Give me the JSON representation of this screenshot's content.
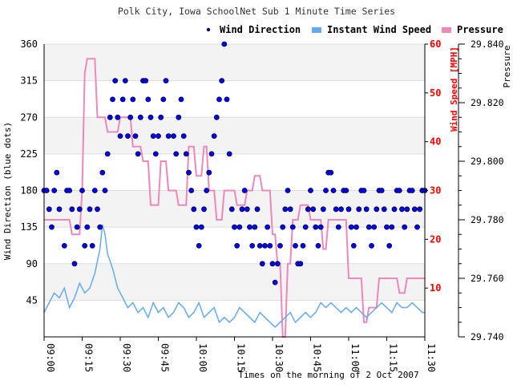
{
  "chart_data": {
    "type": "scatter",
    "title": "Polk City, Iowa SchoolNet Sub 1 Minute Time Series",
    "xlabel": "Times on the morning of 2 Oct 2007",
    "x_ticks": [
      "09:00",
      "09:15",
      "09:30",
      "09:45",
      "10:00",
      "10:15",
      "10:30",
      "10:45",
      "11:00",
      "11:15",
      "11:30"
    ],
    "x_range_minutes": [
      0,
      150
    ],
    "y_left": {
      "label": "Wind Direction (blue dots)",
      "range": [
        0,
        360
      ],
      "ticks": [
        45,
        90,
        135,
        180,
        225,
        270,
        315,
        360
      ]
    },
    "y_right1": {
      "label": "Wind Speed [MPH]",
      "range": [
        0,
        60
      ],
      "ticks": [
        10,
        20,
        30,
        40,
        50,
        60
      ],
      "color": "#ff0000"
    },
    "y_right2": {
      "label": "Pressure",
      "range": [
        29.74,
        29.84
      ],
      "ticks": [
        "29.740",
        "29.760",
        "29.780",
        "29.800",
        "29.820",
        "29.840"
      ]
    },
    "legend_position": "top-right",
    "series": [
      {
        "name": "Wind Direction",
        "type": "scatter",
        "axis": "left",
        "color": "#0000ff",
        "points": [
          [
            0,
            180
          ],
          [
            1,
            180
          ],
          [
            2,
            157
          ],
          [
            3,
            135
          ],
          [
            4,
            180
          ],
          [
            5,
            202
          ],
          [
            6,
            157
          ],
          [
            8,
            112
          ],
          [
            9,
            180
          ],
          [
            10,
            180
          ],
          [
            11,
            157
          ],
          [
            12,
            90
          ],
          [
            13,
            135
          ],
          [
            14,
            157
          ],
          [
            15,
            180
          ],
          [
            16,
            112
          ],
          [
            17,
            135
          ],
          [
            18,
            157
          ],
          [
            19,
            112
          ],
          [
            20,
            180
          ],
          [
            21,
            157
          ],
          [
            22,
            135
          ],
          [
            23,
            202
          ],
          [
            24,
            180
          ],
          [
            25,
            225
          ],
          [
            26,
            270
          ],
          [
            27,
            292
          ],
          [
            28,
            315
          ],
          [
            29,
            270
          ],
          [
            30,
            247
          ],
          [
            31,
            292
          ],
          [
            32,
            315
          ],
          [
            33,
            247
          ],
          [
            34,
            270
          ],
          [
            35,
            292
          ],
          [
            36,
            247
          ],
          [
            37,
            225
          ],
          [
            38,
            270
          ],
          [
            39,
            315
          ],
          [
            40,
            315
          ],
          [
            41,
            292
          ],
          [
            42,
            270
          ],
          [
            43,
            247
          ],
          [
            44,
            225
          ],
          [
            45,
            247
          ],
          [
            46,
            270
          ],
          [
            47,
            292
          ],
          [
            48,
            315
          ],
          [
            49,
            247
          ],
          [
            51,
            247
          ],
          [
            52,
            225
          ],
          [
            53,
            270
          ],
          [
            54,
            292
          ],
          [
            55,
            247
          ],
          [
            56,
            225
          ],
          [
            57,
            202
          ],
          [
            58,
            180
          ],
          [
            59,
            157
          ],
          [
            60,
            135
          ],
          [
            61,
            112
          ],
          [
            62,
            135
          ],
          [
            63,
            157
          ],
          [
            64,
            180
          ],
          [
            65,
            202
          ],
          [
            66,
            225
          ],
          [
            67,
            247
          ],
          [
            68,
            270
          ],
          [
            69,
            292
          ],
          [
            70,
            315
          ],
          [
            71,
            360
          ],
          [
            72,
            292
          ],
          [
            73,
            225
          ],
          [
            74,
            157
          ],
          [
            75,
            135
          ],
          [
            76,
            112
          ],
          [
            77,
            135
          ],
          [
            78,
            157
          ],
          [
            79,
            180
          ],
          [
            80,
            157
          ],
          [
            81,
            135
          ],
          [
            82,
            112
          ],
          [
            83,
            135
          ],
          [
            84,
            157
          ],
          [
            85,
            112
          ],
          [
            86,
            90
          ],
          [
            87,
            112
          ],
          [
            88,
            135
          ],
          [
            89,
            112
          ],
          [
            90,
            90
          ],
          [
            91,
            67
          ],
          [
            92,
            90
          ],
          [
            93,
            112
          ],
          [
            94,
            135
          ],
          [
            95,
            157
          ],
          [
            96,
            180
          ],
          [
            97,
            157
          ],
          [
            98,
            135
          ],
          [
            99,
            112
          ],
          [
            100,
            90
          ],
          [
            101,
            90
          ],
          [
            102,
            112
          ],
          [
            103,
            135
          ],
          [
            104,
            157
          ],
          [
            105,
            180
          ],
          [
            106,
            157
          ],
          [
            107,
            135
          ],
          [
            108,
            112
          ],
          [
            109,
            135
          ],
          [
            110,
            157
          ],
          [
            111,
            180
          ],
          [
            112,
            202
          ],
          [
            113,
            202
          ],
          [
            114,
            180
          ],
          [
            115,
            157
          ],
          [
            116,
            135
          ],
          [
            117,
            157
          ],
          [
            118,
            180
          ],
          [
            119,
            180
          ],
          [
            120,
            157
          ],
          [
            121,
            135
          ],
          [
            122,
            112
          ],
          [
            123,
            135
          ],
          [
            124,
            157
          ],
          [
            125,
            180
          ],
          [
            126,
            180
          ],
          [
            127,
            157
          ],
          [
            128,
            135
          ],
          [
            129,
            112
          ],
          [
            130,
            135
          ],
          [
            131,
            157
          ],
          [
            132,
            180
          ],
          [
            133,
            180
          ],
          [
            134,
            157
          ],
          [
            135,
            135
          ],
          [
            136,
            112
          ],
          [
            137,
            135
          ],
          [
            138,
            157
          ],
          [
            139,
            180
          ],
          [
            140,
            180
          ],
          [
            141,
            157
          ],
          [
            142,
            135
          ],
          [
            143,
            157
          ],
          [
            144,
            180
          ],
          [
            145,
            180
          ],
          [
            146,
            157
          ],
          [
            147,
            135
          ],
          [
            148,
            157
          ],
          [
            149,
            180
          ],
          [
            150,
            180
          ]
        ]
      },
      {
        "name": "Instant Wind Speed",
        "type": "line",
        "axis": "right1",
        "color": "#66aaee",
        "points": [
          [
            0,
            5
          ],
          [
            2,
            7
          ],
          [
            4,
            9
          ],
          [
            6,
            8
          ],
          [
            8,
            10
          ],
          [
            10,
            6
          ],
          [
            12,
            8
          ],
          [
            14,
            11
          ],
          [
            16,
            9
          ],
          [
            18,
            10
          ],
          [
            20,
            13
          ],
          [
            22,
            18
          ],
          [
            23,
            23
          ],
          [
            24,
            21
          ],
          [
            25,
            17
          ],
          [
            27,
            14
          ],
          [
            29,
            10
          ],
          [
            31,
            8
          ],
          [
            33,
            6
          ],
          [
            35,
            7
          ],
          [
            37,
            5
          ],
          [
            39,
            6
          ],
          [
            41,
            4
          ],
          [
            43,
            7
          ],
          [
            45,
            5
          ],
          [
            47,
            6
          ],
          [
            49,
            4
          ],
          [
            51,
            5
          ],
          [
            53,
            7
          ],
          [
            55,
            6
          ],
          [
            57,
            4
          ],
          [
            59,
            5
          ],
          [
            61,
            7
          ],
          [
            63,
            4
          ],
          [
            65,
            5
          ],
          [
            67,
            6
          ],
          [
            69,
            3
          ],
          [
            71,
            4
          ],
          [
            73,
            3
          ],
          [
            75,
            4
          ],
          [
            77,
            6
          ],
          [
            79,
            5
          ],
          [
            81,
            4
          ],
          [
            83,
            3
          ],
          [
            85,
            5
          ],
          [
            87,
            4
          ],
          [
            89,
            3
          ],
          [
            91,
            2
          ],
          [
            93,
            3
          ],
          [
            95,
            4
          ],
          [
            97,
            5
          ],
          [
            99,
            3
          ],
          [
            101,
            4
          ],
          [
            103,
            5
          ],
          [
            105,
            4
          ],
          [
            107,
            5
          ],
          [
            109,
            7
          ],
          [
            111,
            6
          ],
          [
            113,
            7
          ],
          [
            115,
            6
          ],
          [
            117,
            5
          ],
          [
            119,
            6
          ],
          [
            121,
            5
          ],
          [
            123,
            6
          ],
          [
            125,
            5
          ],
          [
            127,
            4
          ],
          [
            129,
            5
          ],
          [
            131,
            6
          ],
          [
            133,
            7
          ],
          [
            135,
            6
          ],
          [
            137,
            5
          ],
          [
            139,
            7
          ],
          [
            141,
            6
          ],
          [
            143,
            6
          ],
          [
            145,
            7
          ],
          [
            147,
            6
          ],
          [
            149,
            5
          ],
          [
            150,
            5
          ]
        ]
      },
      {
        "name": "Pressure",
        "type": "step",
        "axis": "right2",
        "color": "#ee88bb",
        "points": [
          [
            0,
            29.78
          ],
          [
            10,
            29.78
          ],
          [
            11,
            29.775
          ],
          [
            14,
            29.775
          ],
          [
            15,
            29.79
          ],
          [
            16,
            29.83
          ],
          [
            17,
            29.835
          ],
          [
            20,
            29.835
          ],
          [
            21,
            29.815
          ],
          [
            24,
            29.815
          ],
          [
            25,
            29.81
          ],
          [
            29,
            29.81
          ],
          [
            30,
            29.815
          ],
          [
            34,
            29.815
          ],
          [
            35,
            29.805
          ],
          [
            38,
            29.805
          ],
          [
            39,
            29.8
          ],
          [
            41,
            29.8
          ],
          [
            42,
            29.785
          ],
          [
            45,
            29.785
          ],
          [
            46,
            29.8
          ],
          [
            48,
            29.8
          ],
          [
            49,
            29.79
          ],
          [
            52,
            29.79
          ],
          [
            53,
            29.785
          ],
          [
            56,
            29.785
          ],
          [
            57,
            29.805
          ],
          [
            59,
            29.805
          ],
          [
            60,
            29.795
          ],
          [
            62,
            29.795
          ],
          [
            63,
            29.805
          ],
          [
            64,
            29.805
          ],
          [
            65,
            29.79
          ],
          [
            67,
            29.79
          ],
          [
            68,
            29.78
          ],
          [
            70,
            29.78
          ],
          [
            71,
            29.79
          ],
          [
            75,
            29.79
          ],
          [
            76,
            29.785
          ],
          [
            79,
            29.785
          ],
          [
            80,
            29.79
          ],
          [
            82,
            29.79
          ],
          [
            83,
            29.795
          ],
          [
            85,
            29.795
          ],
          [
            86,
            29.79
          ],
          [
            89,
            29.79
          ],
          [
            90,
            29.775
          ],
          [
            91,
            29.775
          ],
          [
            92,
            29.765
          ],
          [
            93,
            29.765
          ],
          [
            94,
            29.74
          ],
          [
            95,
            29.74
          ],
          [
            96,
            29.765
          ],
          [
            97,
            29.765
          ],
          [
            98,
            29.78
          ],
          [
            100,
            29.78
          ],
          [
            101,
            29.785
          ],
          [
            104,
            29.785
          ],
          [
            105,
            29.78
          ],
          [
            109,
            29.78
          ],
          [
            110,
            29.77
          ],
          [
            111,
            29.77
          ],
          [
            112,
            29.78
          ],
          [
            119,
            29.78
          ],
          [
            120,
            29.76
          ],
          [
            125,
            29.76
          ],
          [
            126,
            29.745
          ],
          [
            127,
            29.745
          ],
          [
            128,
            29.75
          ],
          [
            131,
            29.75
          ],
          [
            132,
            29.76
          ],
          [
            139,
            29.76
          ],
          [
            140,
            29.755
          ],
          [
            142,
            29.755
          ],
          [
            143,
            29.76
          ],
          [
            150,
            29.76
          ]
        ]
      }
    ]
  }
}
